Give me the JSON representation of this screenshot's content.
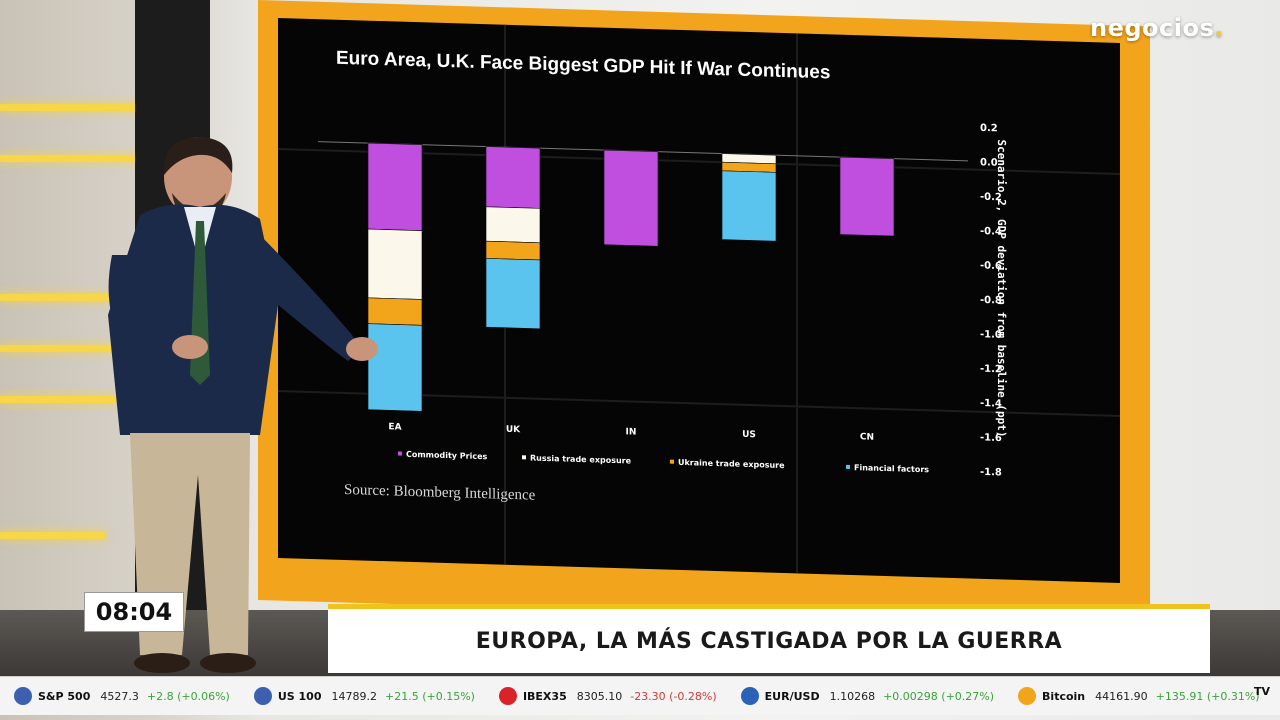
{
  "chart_data": {
    "type": "bar",
    "title": "Euro Area, U.K. Face Biggest GDP Hit If War Continues",
    "source": "Source: Bloomberg Intelligence",
    "ylabel": "Scenario 2, GDP deviation from baseline (ppt)",
    "ylim": [
      -1.8,
      0.2
    ],
    "y_ticks": [
      "0.2",
      "0.0",
      "-0.2",
      "-0.4",
      "-0.6",
      "-0.8",
      "-1.0",
      "-1.2",
      "-1.4",
      "-1.6",
      "-1.8"
    ],
    "categories": [
      "EA",
      "UK",
      "IN",
      "US",
      "CN"
    ],
    "series": [
      {
        "name": "Commodity Prices",
        "color": "#c04fe0",
        "values": [
          -0.5,
          -0.35,
          -0.55,
          0.0,
          -0.45
        ]
      },
      {
        "name": "Russia trade exposure",
        "color": "#fbf7ea",
        "values": [
          -0.4,
          -0.2,
          0.0,
          -0.05,
          0.0
        ]
      },
      {
        "name": "Ukraine trade exposure",
        "color": "#f2a51a",
        "values": [
          -0.15,
          -0.1,
          0.0,
          -0.05,
          0.0
        ]
      },
      {
        "name": "Financial factors",
        "color": "#5ac4ee",
        "values": [
          -0.5,
          -0.4,
          0.0,
          -0.4,
          0.0
        ]
      }
    ],
    "legend_position": "bottom"
  },
  "broadcast": {
    "logo_text": "negocios",
    "logo_dot": ".",
    "clock": "08:04",
    "headline": "EUROPA, LA MÁS CASTIGADA POR LA GUERRA"
  },
  "ticker": [
    {
      "name": "S&P 500",
      "value": "4527.3",
      "change": "+2.8 (+0.06%)",
      "dir": "up",
      "flag": "#3c5fb0"
    },
    {
      "name": "US 100",
      "value": "14789.2",
      "change": "+21.5 (+0.15%)",
      "dir": "up",
      "flag": "#3c5fb0"
    },
    {
      "name": "IBEX35",
      "value": "8305.10",
      "change": "-23.30 (-0.28%)",
      "dir": "down",
      "flag": "#d8232a"
    },
    {
      "name": "EUR/USD",
      "value": "1.10268",
      "change": "+0.00298 (+0.27%)",
      "dir": "up",
      "flag": "#2a62b8"
    },
    {
      "name": "Bitcoin",
      "value": "44161.90",
      "change": "+135.91 (+0.31%)",
      "dir": "up",
      "flag": "#f2a51a"
    }
  ],
  "ticker_logo": "TV"
}
